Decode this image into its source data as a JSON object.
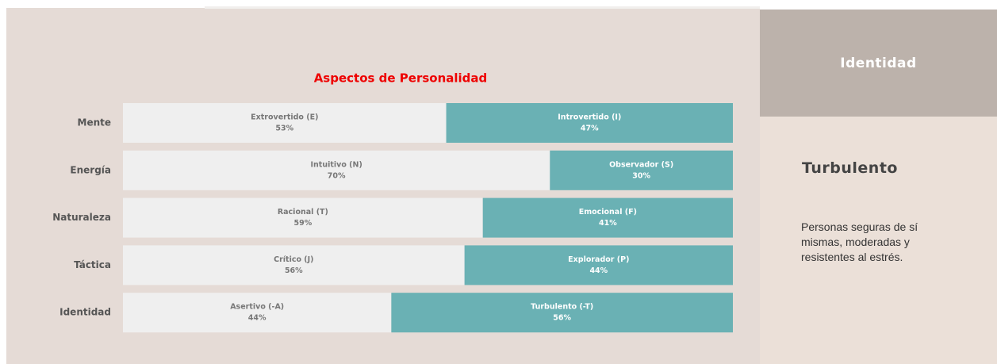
{
  "chart_data": {
    "type": "bar",
    "stacked": true,
    "orientation": "horizontal",
    "title": "Aspectos de Personalidad",
    "categories": [
      "Mente",
      "Energía",
      "Naturaleza",
      "Táctica",
      "Identidad"
    ],
    "xlim": [
      0,
      100
    ],
    "series": [
      {
        "color": "#efefef",
        "text_color": "#777777",
        "segment_labels": [
          "Extrovertido (E)",
          "Intuitivo (N)",
          "Racional (T)",
          "Crítico (J)",
          "Asertivo (-A)"
        ],
        "values": [
          53,
          70,
          59,
          56,
          44
        ],
        "value_labels": [
          "53%",
          "70%",
          "59%",
          "56%",
          "44%"
        ]
      },
      {
        "color": "#6ab1b4",
        "text_color": "#ffffff",
        "segment_labels": [
          "Introvertido (I)",
          "Observador (S)",
          "Emocional (F)",
          "Explorador (P)",
          "Turbulento (-T)"
        ],
        "values": [
          47,
          30,
          41,
          44,
          56
        ],
        "value_labels": [
          "47%",
          "30%",
          "41%",
          "44%",
          "56%"
        ]
      }
    ]
  },
  "panel": {
    "header": "Identidad",
    "title": "Turbulento",
    "text": "Personas seguras de sí mismas, moderadas  y resistentes al estrés."
  }
}
